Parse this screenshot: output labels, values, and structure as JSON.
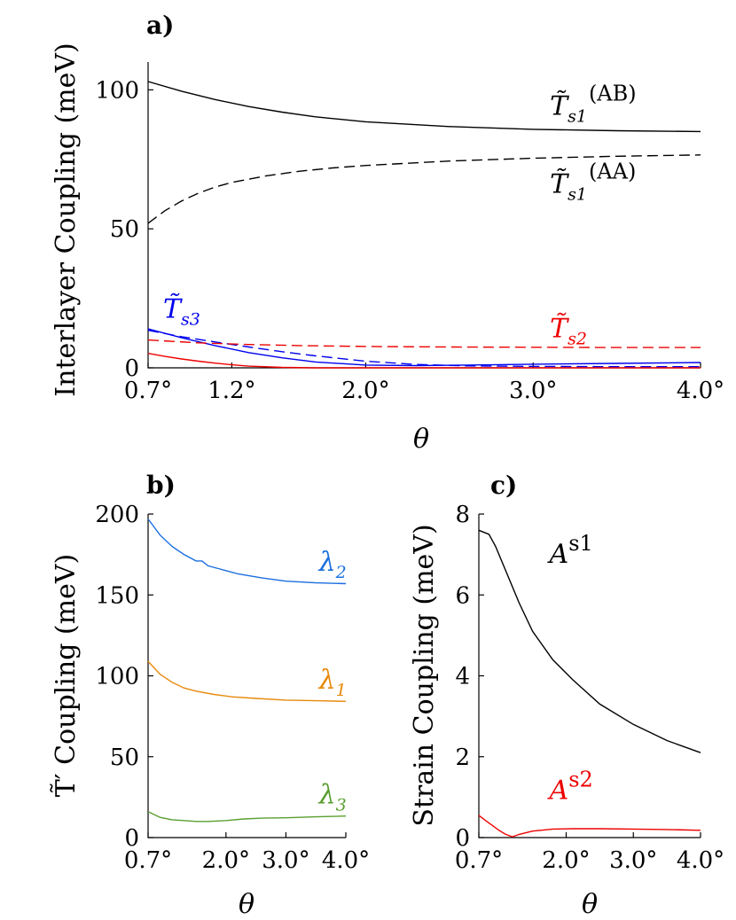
{
  "chart_data": [
    {
      "id": "a",
      "type": "line",
      "panel_label": "a)",
      "ylabel": "Interlayer Coupling (meV)",
      "xlabel": "θ",
      "xlim": [
        0.7,
        4.0
      ],
      "ylim": [
        0,
        110
      ],
      "xticks": [
        0.7,
        1.2,
        2.0,
        3.0,
        4.0
      ],
      "xtick_labels": [
        "0.7°",
        "1.2°",
        "2.0°",
        "3.0°",
        "4.0°"
      ],
      "yticks": [
        0,
        50,
        100
      ],
      "ytick_labels": [
        "0",
        "50",
        "100"
      ],
      "series": [
        {
          "name": "Ts1 AB",
          "color": "#000000",
          "dash": false,
          "x": [
            0.7,
            0.9,
            1.1,
            1.3,
            1.5,
            1.7,
            2.0,
            2.5,
            3.0,
            3.5,
            4.0
          ],
          "y": [
            103,
            99.5,
            96.5,
            94,
            92,
            90.3,
            88.5,
            86.8,
            85.8,
            85.3,
            85
          ]
        },
        {
          "name": "Ts1 AA",
          "color": "#000000",
          "dash": true,
          "x": [
            0.7,
            0.8,
            0.9,
            1.0,
            1.1,
            1.2,
            1.4,
            1.6,
            1.8,
            2.0,
            2.5,
            3.0,
            3.5,
            4.0
          ],
          "y": [
            52,
            56.5,
            60,
            62.8,
            65,
            66.7,
            69,
            70.7,
            71.9,
            72.8,
            74.4,
            75.4,
            76.1,
            76.6
          ]
        },
        {
          "name": "Ts3 solid",
          "color": "#0000ee",
          "dash": false,
          "x": [
            0.7,
            0.9,
            1.1,
            1.3,
            1.5,
            1.7,
            2.0,
            2.3,
            2.6,
            3.0,
            3.5,
            4.0
          ],
          "y": [
            14,
            10.8,
            8,
            5.5,
            3.6,
            2.1,
            1.0,
            0.8,
            1.0,
            1.3,
            1.6,
            1.9
          ]
        },
        {
          "name": "Ts3 dashed",
          "color": "#0000ee",
          "dash": true,
          "x": [
            0.7,
            0.9,
            1.1,
            1.3,
            1.5,
            1.7,
            2.0,
            2.3,
            2.6,
            3.0,
            3.5,
            4.0
          ],
          "y": [
            13.5,
            11.2,
            9.3,
            7.5,
            5.8,
            4.3,
            2.4,
            1.2,
            0.7,
            0.5,
            0.4,
            0.4
          ]
        },
        {
          "name": "Ts2 dashed",
          "color": "#ee0000",
          "dash": true,
          "x": [
            0.7,
            1.0,
            1.3,
            1.6,
            2.0,
            2.5,
            3.0,
            3.5,
            4.0
          ],
          "y": [
            10,
            9.0,
            8.4,
            8.0,
            7.7,
            7.5,
            7.4,
            7.3,
            7.3
          ]
        },
        {
          "name": "Ts2 solid",
          "color": "#ee0000",
          "dash": false,
          "x": [
            0.7,
            0.8,
            0.9,
            1.0,
            1.1,
            1.2,
            1.3,
            1.5,
            1.7,
            2.0,
            2.5,
            3.0,
            3.5,
            4.0
          ],
          "y": [
            5.2,
            4.1,
            3.2,
            2.4,
            1.7,
            1.1,
            0.6,
            0.15,
            0,
            0,
            0,
            0,
            0,
            0
          ]
        }
      ],
      "annotations": [
        {
          "main": "T̃",
          "sub": "s1",
          "sup": "(AB)",
          "color": "#000000",
          "x": 3.1,
          "y": 91
        },
        {
          "main": "T̃",
          "sub": "s1",
          "sup": "(AA)",
          "color": "#000000",
          "x": 3.1,
          "y": 63
        },
        {
          "main": "T̃",
          "sub": "s3",
          "sup": "",
          "color": "#0000ee",
          "x": 0.79,
          "y": 18
        },
        {
          "main": "T̃",
          "sub": "s2",
          "sup": "",
          "color": "#ee0000",
          "x": 3.1,
          "y": 11
        }
      ]
    },
    {
      "id": "b",
      "type": "line",
      "panel_label": "b)",
      "ylabel": "T̃′ Coupling (meV)",
      "xlabel": "θ",
      "xlim": [
        0.7,
        4.0
      ],
      "ylim": [
        0,
        200
      ],
      "xticks": [
        0.7,
        2.0,
        3.0,
        4.0
      ],
      "xtick_labels": [
        "0.7°",
        "2.0°",
        "3.0°",
        "4.0°"
      ],
      "yticks": [
        0,
        50,
        100,
        150,
        200
      ],
      "ytick_labels": [
        "0",
        "50",
        "100",
        "150",
        "200"
      ],
      "series": [
        {
          "name": "λ2",
          "color": "#1a6fdf",
          "dash": false,
          "x": [
            0.7,
            0.9,
            1.1,
            1.3,
            1.5,
            1.6,
            1.7,
            1.9,
            2.2,
            2.6,
            3.0,
            3.5,
            4.0
          ],
          "y": [
            197,
            187,
            180,
            175,
            171,
            171,
            168,
            166,
            163,
            160.5,
            158.5,
            157.5,
            157
          ]
        },
        {
          "name": "λ1",
          "color": "#e8890c",
          "dash": false,
          "x": [
            0.7,
            0.9,
            1.1,
            1.3,
            1.5,
            1.8,
            2.1,
            2.5,
            3.0,
            3.5,
            4.0
          ],
          "y": [
            109,
            101,
            96,
            92.5,
            90.5,
            88.5,
            87,
            86,
            85,
            84.6,
            84.2
          ]
        },
        {
          "name": "λ3",
          "color": "#5a9e2f",
          "dash": false,
          "x": [
            0.7,
            0.9,
            1.1,
            1.3,
            1.5,
            1.7,
            2.0,
            2.3,
            2.6,
            3.0,
            3.5,
            4.0
          ],
          "y": [
            16,
            12.5,
            11,
            10.5,
            10,
            10,
            10.5,
            11.5,
            12,
            12.2,
            12.8,
            13.3
          ]
        }
      ],
      "annotations": [
        {
          "main": "λ",
          "sub": "2",
          "sup": "",
          "color": "#1a6fdf",
          "x": 3.55,
          "y": 165
        },
        {
          "main": "λ",
          "sub": "1",
          "sup": "",
          "color": "#e8890c",
          "x": 3.55,
          "y": 92
        },
        {
          "main": "λ",
          "sub": "3",
          "sup": "",
          "color": "#5a9e2f",
          "x": 3.55,
          "y": 21
        }
      ]
    },
    {
      "id": "c",
      "type": "line",
      "panel_label": "c)",
      "ylabel": "Strain Coupling (meV)",
      "xlabel": "θ",
      "xlim": [
        0.7,
        4.0
      ],
      "ylim": [
        0,
        8
      ],
      "xticks": [
        0.7,
        2.0,
        3.0,
        4.0
      ],
      "xtick_labels": [
        "0.7°",
        "2.0°",
        "3.0°",
        "4.0°"
      ],
      "yticks": [
        0,
        2,
        4,
        6,
        8
      ],
      "ytick_labels": [
        "0",
        "2",
        "4",
        "6",
        "8"
      ],
      "series": [
        {
          "name": "A s1",
          "color": "#000000",
          "dash": false,
          "x": [
            0.7,
            0.85,
            0.95,
            1.1,
            1.3,
            1.5,
            1.8,
            2.1,
            2.5,
            3.0,
            3.5,
            4.0
          ],
          "y": [
            7.6,
            7.5,
            7.2,
            6.6,
            5.8,
            5.1,
            4.4,
            3.9,
            3.3,
            2.8,
            2.4,
            2.1
          ]
        },
        {
          "name": "A s2",
          "color": "#ee0000",
          "dash": false,
          "x": [
            0.7,
            0.8,
            0.9,
            1.0,
            1.1,
            1.2,
            1.3,
            1.5,
            1.8,
            2.1,
            2.5,
            3.0,
            3.5,
            4.0
          ],
          "y": [
            0.55,
            0.42,
            0.3,
            0.18,
            0.08,
            0.02,
            0.08,
            0.16,
            0.21,
            0.22,
            0.22,
            0.21,
            0.2,
            0.18
          ]
        }
      ],
      "annotations": [
        {
          "main": "A",
          "sub": "",
          "sup": "s1",
          "color": "#000000",
          "x": 1.75,
          "y": 6.8
        },
        {
          "main": "A",
          "sub": "",
          "sup": "s2",
          "color": "#ee0000",
          "x": 1.75,
          "y": 0.95
        }
      ]
    }
  ]
}
